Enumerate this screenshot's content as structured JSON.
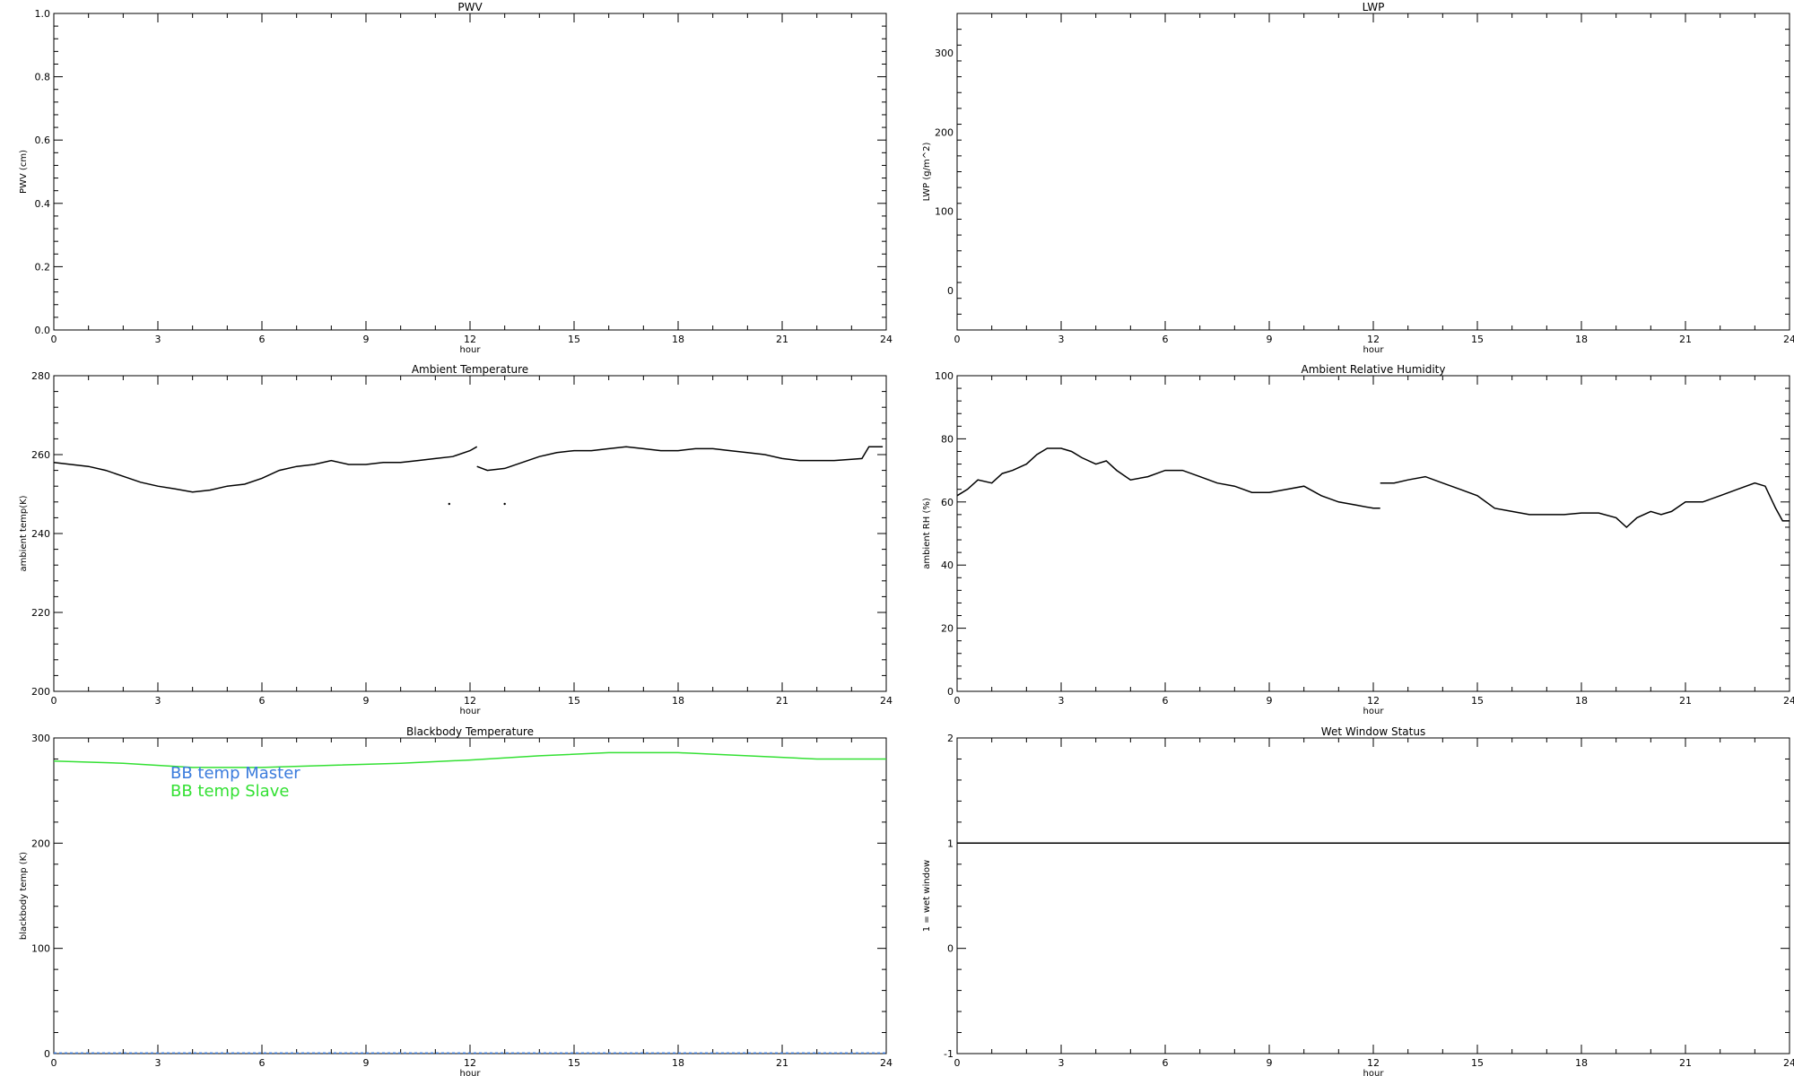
{
  "chart_data": [
    {
      "id": "pwv",
      "type": "line",
      "title": "PWV",
      "xlabel": "hour",
      "ylabel": "PWV (cm)",
      "xlim": [
        0,
        24
      ],
      "ylim": [
        0,
        1
      ],
      "xticks": [
        0,
        3,
        6,
        9,
        12,
        15,
        18,
        21,
        24
      ],
      "yticks": [
        0.0,
        0.2,
        0.4,
        0.6,
        0.8,
        1.0
      ],
      "ytick_labels": [
        "0.0",
        "0.2",
        "0.4",
        "0.6",
        "0.8",
        "1.0"
      ],
      "series": []
    },
    {
      "id": "lwp",
      "type": "line",
      "title": "LWP",
      "xlabel": "hour",
      "ylabel": "LWP (g/m^2)",
      "xlim": [
        0,
        24
      ],
      "ylim": [
        -50,
        350
      ],
      "xticks": [
        0,
        3,
        6,
        9,
        12,
        15,
        18,
        21,
        24
      ],
      "yticks": [
        0,
        100,
        200,
        300
      ],
      "ytick_labels": [
        "0",
        "100",
        "200",
        "300"
      ],
      "series": []
    },
    {
      "id": "ambient-temp",
      "type": "line",
      "title": "Ambient Temperature",
      "xlabel": "hour",
      "ylabel": "ambient temp(K)",
      "xlim": [
        0,
        24
      ],
      "ylim": [
        200,
        280
      ],
      "xticks": [
        0,
        3,
        6,
        9,
        12,
        15,
        18,
        21,
        24
      ],
      "yticks": [
        200,
        220,
        240,
        260,
        280
      ],
      "ytick_labels": [
        "200",
        "220",
        "240",
        "260",
        "280"
      ],
      "series": [
        {
          "color": "#000000",
          "segments": [
            [
              [
                0,
                258
              ],
              [
                0.5,
                257.5
              ],
              [
                1,
                257
              ],
              [
                1.5,
                256
              ],
              [
                2,
                254.5
              ],
              [
                2.5,
                253
              ],
              [
                3,
                252
              ],
              [
                3.5,
                251.3
              ],
              [
                4,
                250.5
              ],
              [
                4.5,
                251
              ],
              [
                5,
                252
              ],
              [
                5.5,
                252.5
              ],
              [
                6,
                254
              ],
              [
                6.5,
                256
              ],
              [
                7,
                257
              ],
              [
                7.5,
                257.5
              ],
              [
                8,
                258.5
              ],
              [
                8.5,
                257.5
              ],
              [
                9,
                257.5
              ],
              [
                9.5,
                258
              ],
              [
                10,
                258
              ],
              [
                10.5,
                258.5
              ],
              [
                11,
                259
              ],
              [
                11.5,
                259.5
              ],
              [
                12,
                261
              ],
              [
                12.2,
                262
              ]
            ],
            [
              [
                12.2,
                257
              ],
              [
                12.5,
                256
              ],
              [
                13,
                256.5
              ],
              [
                13.5,
                258
              ],
              [
                14,
                259.5
              ],
              [
                14.5,
                260.5
              ],
              [
                15,
                261
              ],
              [
                15.5,
                261
              ],
              [
                16,
                261.5
              ],
              [
                16.5,
                262
              ],
              [
                17,
                261.5
              ],
              [
                17.5,
                261
              ],
              [
                18,
                261
              ],
              [
                18.5,
                261.5
              ],
              [
                19,
                261.5
              ],
              [
                19.5,
                261
              ],
              [
                20,
                260.5
              ],
              [
                20.5,
                260
              ],
              [
                21,
                259
              ],
              [
                21.5,
                258.5
              ],
              [
                22,
                258.5
              ],
              [
                22.5,
                258.5
              ],
              [
                23,
                258.8
              ],
              [
                23.3,
                259
              ],
              [
                23.5,
                262
              ],
              [
                23.9,
                262
              ]
            ]
          ],
          "points": [
            [
              11.4,
              247.5
            ],
            [
              13.0,
              247.5
            ]
          ]
        }
      ]
    },
    {
      "id": "ambient-rh",
      "type": "line",
      "title": "Ambient Relative Humidity",
      "xlabel": "hour",
      "ylabel": "ambient RH (%)",
      "xlim": [
        0,
        24
      ],
      "ylim": [
        0,
        100
      ],
      "xticks": [
        0,
        3,
        6,
        9,
        12,
        15,
        18,
        21,
        24
      ],
      "yticks": [
        0,
        20,
        40,
        60,
        80,
        100
      ],
      "ytick_labels": [
        "0",
        "20",
        "40",
        "60",
        "80",
        "100"
      ],
      "series": [
        {
          "color": "#000000",
          "segments": [
            [
              [
                0,
                62
              ],
              [
                0.3,
                64
              ],
              [
                0.6,
                67
              ],
              [
                1,
                66
              ],
              [
                1.3,
                69
              ],
              [
                1.6,
                70
              ],
              [
                2,
                72
              ],
              [
                2.3,
                75
              ],
              [
                2.6,
                77
              ],
              [
                3,
                77
              ],
              [
                3.3,
                76
              ],
              [
                3.6,
                74
              ],
              [
                4,
                72
              ],
              [
                4.3,
                73
              ],
              [
                4.6,
                70
              ],
              [
                5,
                67
              ],
              [
                5.5,
                68
              ],
              [
                6,
                70
              ],
              [
                6.5,
                70
              ],
              [
                7,
                68
              ],
              [
                7.5,
                66
              ],
              [
                8,
                65
              ],
              [
                8.5,
                63
              ],
              [
                9,
                63
              ],
              [
                9.5,
                64
              ],
              [
                10,
                65
              ],
              [
                10.5,
                62
              ],
              [
                11,
                60
              ],
              [
                11.5,
                59
              ],
              [
                12,
                58
              ],
              [
                12.2,
                58
              ]
            ],
            [
              [
                12.2,
                66
              ],
              [
                12.6,
                66
              ],
              [
                13,
                67
              ],
              [
                13.5,
                68
              ],
              [
                14,
                66
              ],
              [
                14.5,
                64
              ],
              [
                15,
                62
              ],
              [
                15.5,
                58
              ],
              [
                16,
                57
              ],
              [
                16.5,
                56
              ],
              [
                17,
                56
              ],
              [
                17.5,
                56
              ],
              [
                18,
                56.5
              ],
              [
                18.5,
                56.5
              ],
              [
                19,
                55
              ],
              [
                19.3,
                52
              ],
              [
                19.6,
                55
              ],
              [
                20,
                57
              ],
              [
                20.3,
                56
              ],
              [
                20.6,
                57
              ],
              [
                21,
                60
              ],
              [
                21.5,
                60
              ],
              [
                22,
                62
              ],
              [
                22.5,
                64
              ],
              [
                23,
                66
              ],
              [
                23.3,
                65
              ],
              [
                23.6,
                58
              ],
              [
                23.8,
                54
              ],
              [
                24,
                54
              ]
            ]
          ],
          "points": []
        }
      ]
    },
    {
      "id": "bb-temp",
      "type": "line",
      "title": "Blackbody Temperature",
      "xlabel": "hour",
      "ylabel": "blackbody temp (K)",
      "xlim": [
        0,
        24
      ],
      "ylim": [
        0,
        300
      ],
      "xticks": [
        0,
        3,
        6,
        9,
        12,
        15,
        18,
        21,
        24
      ],
      "yticks": [
        0,
        100,
        200,
        300
      ],
      "ytick_labels": [
        "0",
        "100",
        "200",
        "300"
      ],
      "legend_position": "top-left",
      "series": [
        {
          "name": "BB temp Master",
          "color": "#3a7bdc",
          "style": "dashed",
          "segments": [
            [
              [
                0,
                0.5
              ],
              [
                24,
                0.5
              ]
            ]
          ],
          "points": []
        },
        {
          "name": "BB temp Slave",
          "color": "#33e033",
          "segments": [
            [
              [
                0,
                278
              ],
              [
                2,
                276
              ],
              [
                4,
                272
              ],
              [
                6,
                272
              ],
              [
                8,
                274
              ],
              [
                10,
                276
              ],
              [
                12,
                279
              ],
              [
                14,
                283
              ],
              [
                16,
                286
              ],
              [
                18,
                286
              ],
              [
                20,
                283
              ],
              [
                22,
                280
              ],
              [
                24,
                280
              ]
            ]
          ],
          "points": []
        }
      ]
    },
    {
      "id": "wet-window",
      "type": "line",
      "title": "Wet Window Status",
      "xlabel": "hour",
      "ylabel": "1 = wet window",
      "xlim": [
        0,
        24
      ],
      "ylim": [
        -1,
        2
      ],
      "xticks": [
        0,
        3,
        6,
        9,
        12,
        15,
        18,
        21,
        24
      ],
      "yticks": [
        -1,
        0,
        1,
        2
      ],
      "ytick_labels": [
        "-1",
        "0",
        "1",
        "2"
      ],
      "series": [
        {
          "color": "#000000",
          "segments": [
            [
              [
                0,
                1
              ],
              [
                24,
                1
              ]
            ]
          ],
          "points": []
        }
      ]
    }
  ]
}
